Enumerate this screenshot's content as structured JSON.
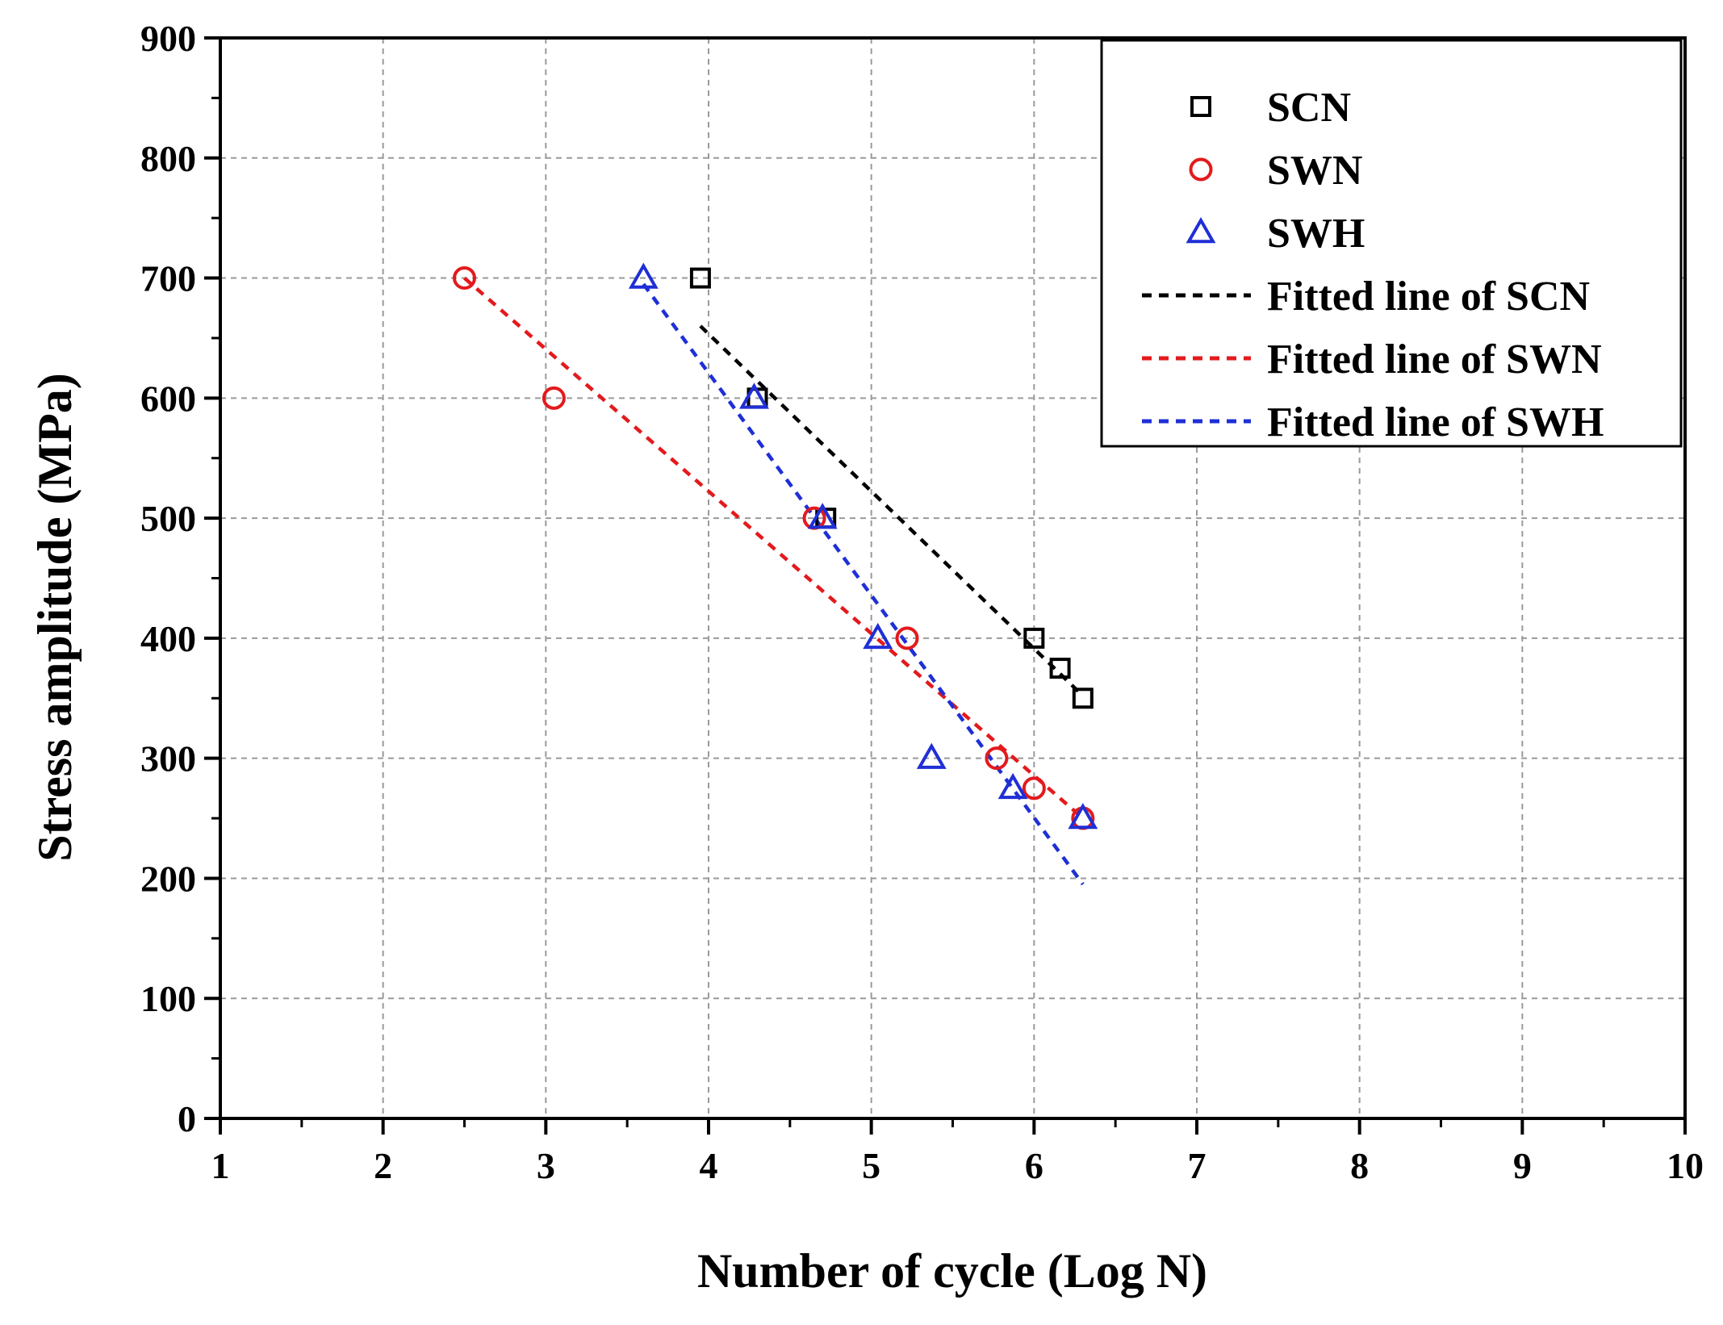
{
  "chart_data": {
    "type": "scatter",
    "title": "",
    "xlabel": "Number of cycle (Log N)",
    "ylabel": "Stress amplitude (MPa)",
    "xlim": [
      1,
      10
    ],
    "ylim": [
      0,
      900
    ],
    "xticks": [
      "1",
      "2",
      "3",
      "4",
      "5",
      "6",
      "7",
      "8",
      "9",
      "10"
    ],
    "yticks": [
      "0",
      "100",
      "200",
      "300",
      "400",
      "500",
      "600",
      "700",
      "800",
      "900"
    ],
    "grid": true,
    "legend_position": "top-right",
    "series": [
      {
        "name": "SCN",
        "marker": "square",
        "color": "#000000",
        "points": [
          [
            3.95,
            700
          ],
          [
            4.3,
            600
          ],
          [
            4.72,
            500
          ],
          [
            6.0,
            400
          ],
          [
            6.16,
            375
          ],
          [
            6.3,
            350
          ]
        ]
      },
      {
        "name": "SWN",
        "marker": "circle",
        "color": "#e31a1c",
        "points": [
          [
            2.5,
            700
          ],
          [
            3.05,
            600
          ],
          [
            4.65,
            500
          ],
          [
            5.22,
            400
          ],
          [
            5.77,
            300
          ],
          [
            6.0,
            275
          ],
          [
            6.3,
            250
          ]
        ]
      },
      {
        "name": "SWH",
        "marker": "triangle",
        "color": "#1f2fd6",
        "points": [
          [
            3.6,
            700
          ],
          [
            4.28,
            600
          ],
          [
            4.7,
            500
          ],
          [
            5.04,
            400
          ],
          [
            5.37,
            300
          ],
          [
            5.87,
            275
          ],
          [
            6.3,
            250
          ]
        ]
      }
    ],
    "fitted_lines": [
      {
        "name": "Fitted line of SCN",
        "color": "#000000",
        "points": [
          [
            3.95,
            660
          ],
          [
            6.3,
            352
          ]
        ]
      },
      {
        "name": "Fitted line of SWN",
        "color": "#e31a1c",
        "points": [
          [
            2.5,
            700
          ],
          [
            6.3,
            250
          ]
        ]
      },
      {
        "name": "Fitted line of SWH",
        "color": "#1f2fd6",
        "points": [
          [
            3.6,
            695
          ],
          [
            6.3,
            195
          ]
        ]
      }
    ]
  }
}
